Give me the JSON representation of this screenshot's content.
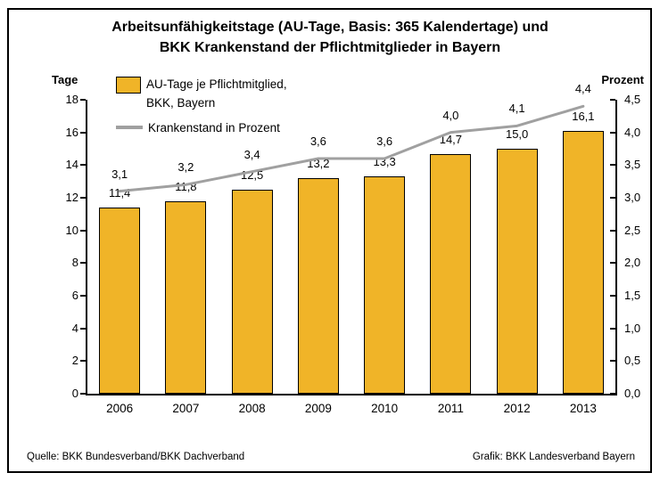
{
  "title": {
    "line1": "Arbeitsunfähigkeitstage (AU-Tage, Basis: 365 Kalendertage) und",
    "line2": "BKK Krankenstand der Pflichtmitglieder in Bayern"
  },
  "legend": [
    {
      "swatch": "bar-swatch",
      "label": "AU-Tage je Pflichtmitglied,\nBKK, Bayern"
    },
    {
      "swatch": "line-swatch",
      "label": "Krankenstand in Prozent"
    }
  ],
  "footer": {
    "source": "Quelle: BKK Bundesverband/BKK Dachverband",
    "credit": "Grafik: BKK Landesverband Bayern"
  },
  "colors": {
    "bar_fill": "#F0B428",
    "bar_border": "#000000",
    "line": "#A0A0A0",
    "axis": "#000000",
    "text": "#000000"
  },
  "chart_data": {
    "type": "bar",
    "subtype": "bar+line dual axis",
    "title": "Arbeitsunfähigkeitstage (AU-Tage, Basis: 365 Kalendertage) und BKK Krankenstand der Pflichtmitglieder in Bayern",
    "categories": [
      "2006",
      "2007",
      "2008",
      "2009",
      "2010",
      "2011",
      "2012",
      "2013"
    ],
    "series": [
      {
        "name": "AU-Tage je Pflichtmitglied, BKK, Bayern",
        "type": "bar",
        "axis": "left",
        "values": [
          11.4,
          11.8,
          12.5,
          13.2,
          13.3,
          14.7,
          15.0,
          16.1
        ],
        "value_labels": [
          "11,4",
          "11,8",
          "12,5",
          "13,2",
          "13,3",
          "14,7",
          "15,0",
          "16,1"
        ]
      },
      {
        "name": "Krankenstand in Prozent",
        "type": "line",
        "axis": "right",
        "values": [
          3.1,
          3.2,
          3.4,
          3.6,
          3.6,
          4.0,
          4.1,
          4.4
        ],
        "value_labels": [
          "3,1",
          "3,2",
          "3,4",
          "3,6",
          "3,6",
          "4,0",
          "4,1",
          "4,4"
        ]
      }
    ],
    "left_axis": {
      "label": "Tage",
      "min": 0,
      "max": 18,
      "step": 2,
      "tick_labels": [
        "0",
        "2",
        "4",
        "6",
        "8",
        "10",
        "12",
        "14",
        "16",
        "18"
      ]
    },
    "right_axis": {
      "label": "Prozent",
      "min": 0,
      "max": 4.5,
      "step": 0.5,
      "tick_labels": [
        "0,0",
        "0,5",
        "1,0",
        "1,5",
        "2,0",
        "2,5",
        "3,0",
        "3,5",
        "4,0",
        "4,5"
      ]
    },
    "grid": false,
    "legend_position": "top-left"
  }
}
